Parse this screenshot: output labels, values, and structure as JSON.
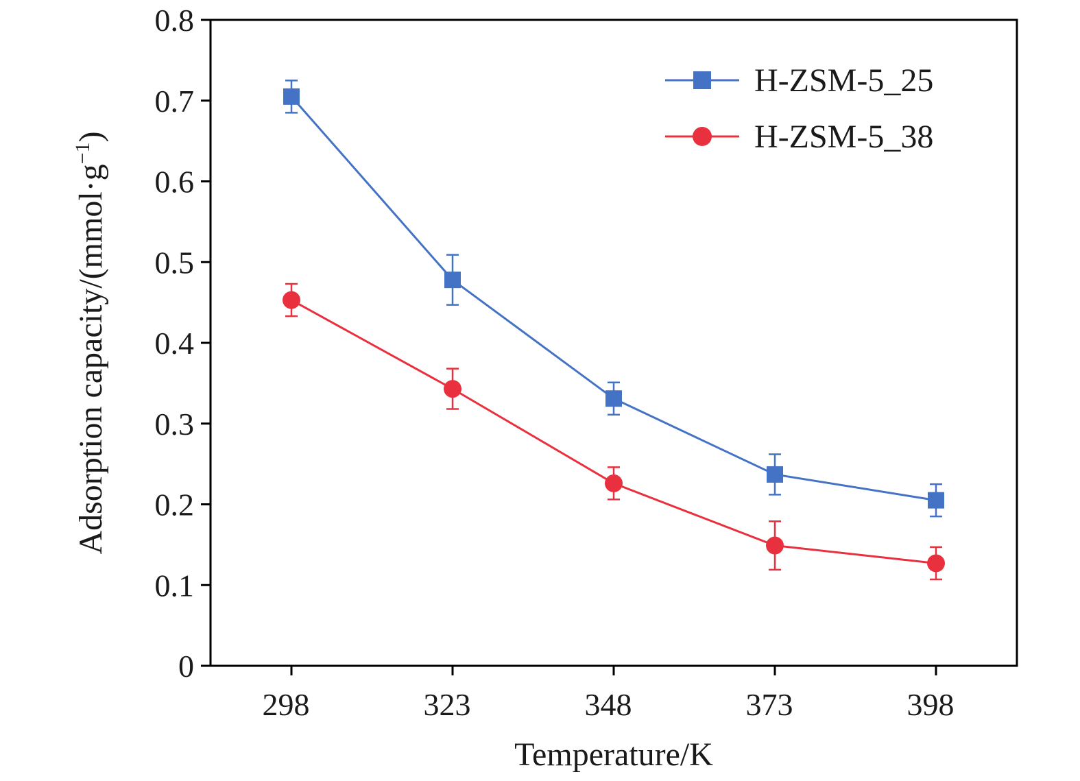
{
  "chart_data": {
    "type": "line",
    "xlabel": "Temperature/K",
    "ylabel_main": "Adsorption capacity/(mmol·g",
    "ylabel_sup": "−1",
    "ylabel_end": ")",
    "categories": [
      "298",
      "323",
      "348",
      "373",
      "398"
    ],
    "ylim": [
      0,
      0.8
    ],
    "yticks": [
      "0",
      "0.1",
      "0.2",
      "0.3",
      "0.4",
      "0.5",
      "0.6",
      "0.7",
      "0.8"
    ],
    "grid": false,
    "legend": "top-right",
    "series": [
      {
        "name": "H-ZSM-5_25",
        "marker": "square",
        "color": "#4472C4",
        "values": [
          0.705,
          0.478,
          0.331,
          0.237,
          0.205
        ],
        "errors": [
          0.02,
          0.031,
          0.02,
          0.025,
          0.02
        ]
      },
      {
        "name": "H-ZSM-5_38",
        "marker": "circle",
        "color": "#E8303F",
        "values": [
          0.453,
          0.343,
          0.226,
          0.149,
          0.127
        ],
        "errors": [
          0.02,
          0.025,
          0.02,
          0.03,
          0.02
        ]
      }
    ]
  }
}
